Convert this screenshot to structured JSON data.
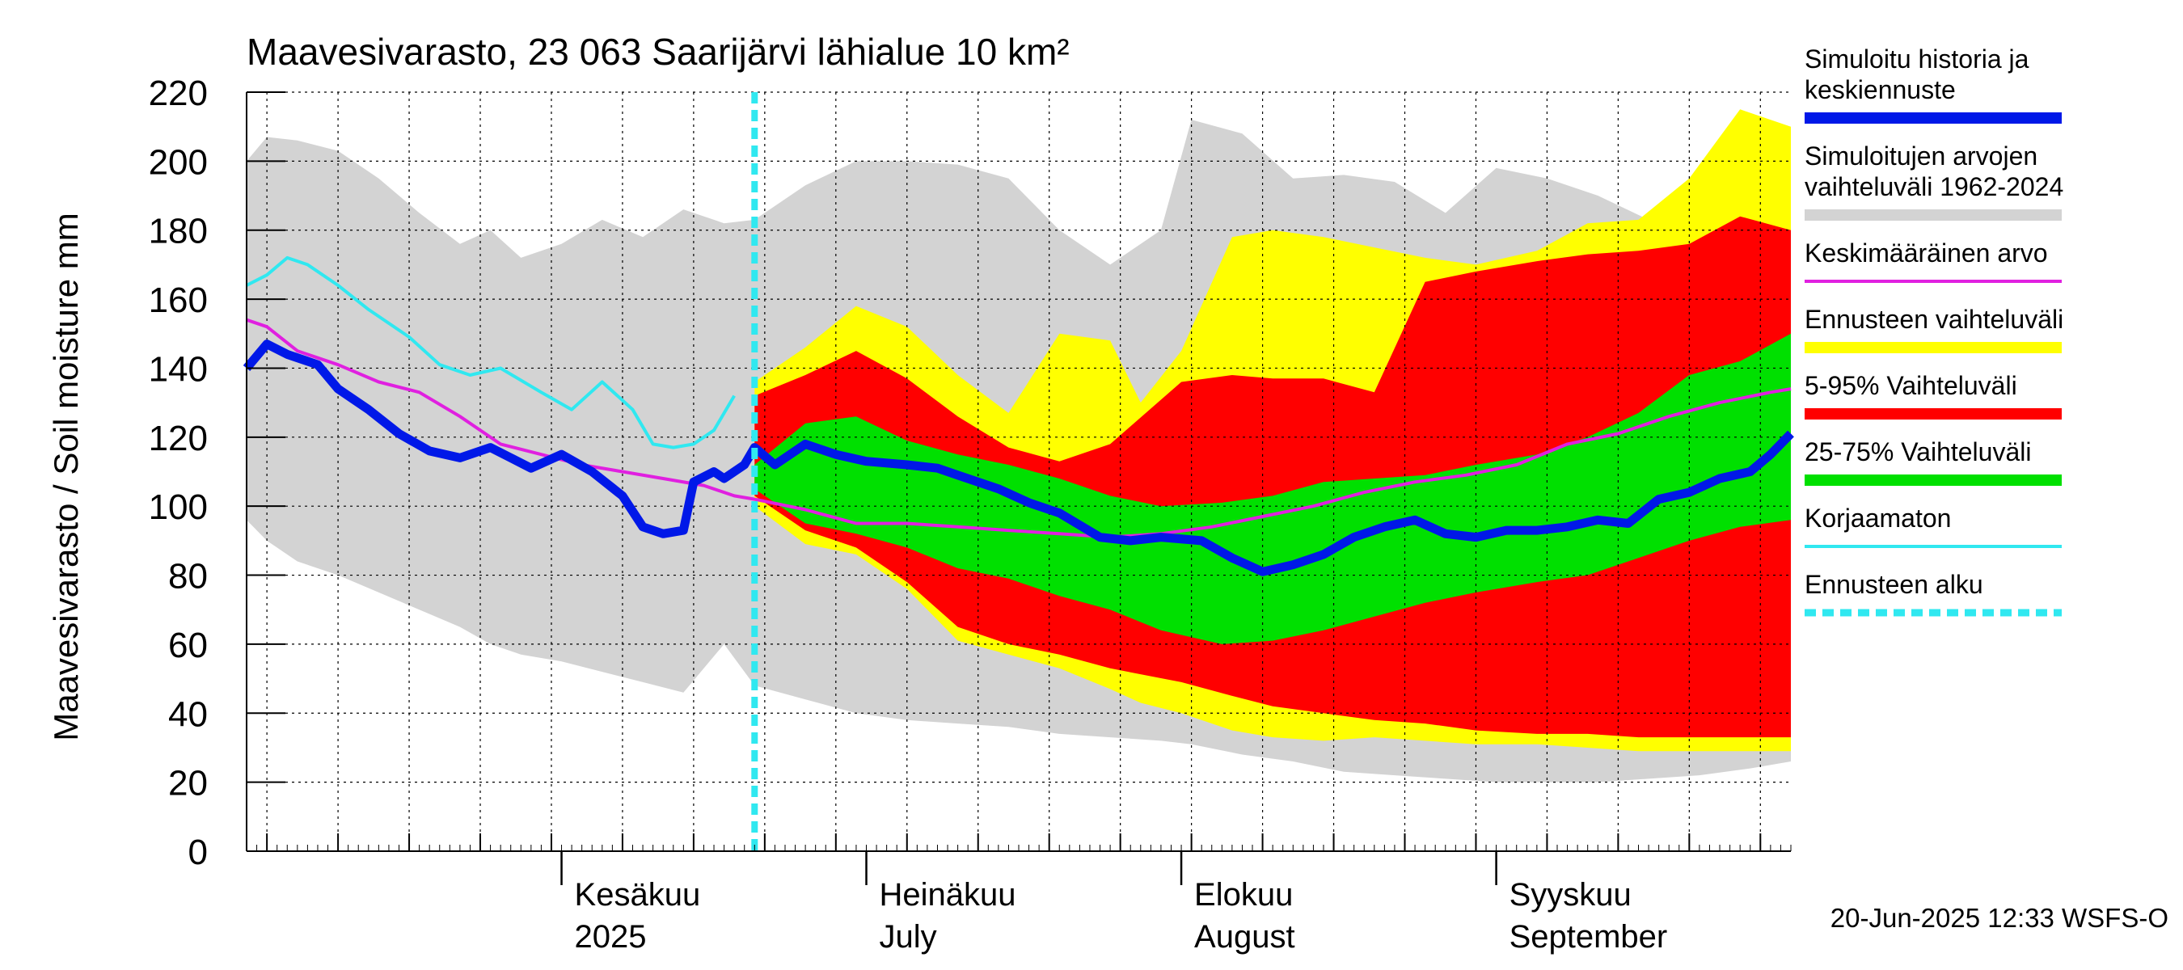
{
  "chart_data": {
    "type": "area",
    "title": "Maavesivarasto, 23 063 Saarijärvi lähialue 10 km²",
    "ylabel": "Maavesivarasto / Soil moisture   mm",
    "ylim": [
      0,
      220
    ],
    "yticks": [
      "0",
      "20",
      "40",
      "60",
      "80",
      "100",
      "120",
      "140",
      "160",
      "180",
      "200",
      "220"
    ],
    "xlim": [
      "2025-05-01",
      "2025-09-30"
    ],
    "month_labels": [
      {
        "date": "2025-06-01",
        "line1": "Kesäkuu",
        "line2": "2025"
      },
      {
        "date": "2025-07-01",
        "line1": "Heinäkuu",
        "line2": "July"
      },
      {
        "date": "2025-08-01",
        "line1": "Elokuu",
        "line2": "August"
      },
      {
        "date": "2025-09-01",
        "line1": "Syyskuu",
        "line2": "September"
      }
    ],
    "grid": true,
    "forecast_start": "2025-06-20",
    "legend_position": "right",
    "legend": [
      {
        "label": "Simuloitu historia ja keskiennuste",
        "color": "#0018e8",
        "style": "thick"
      },
      {
        "label": "Simuloitujen arvojen vaihteluväli 1962-2024",
        "color": "#d3d3d3",
        "style": "thick"
      },
      {
        "label": "Keskimääräinen arvo",
        "color": "#e020e0",
        "style": "thin"
      },
      {
        "label": "Ennusteen vaihteluväli",
        "color": "#ffff00",
        "style": "thick"
      },
      {
        "label": "5-95% Vaihteluväli",
        "color": "#ff0000",
        "style": "thick"
      },
      {
        "label": "25-75% Vaihteluväli",
        "color": "#00e000",
        "style": "thick"
      },
      {
        "label": "Korjaamaton",
        "color": "#30e8f0",
        "style": "thin"
      },
      {
        "label": "Ennusteen alku",
        "color": "#30e8f0",
        "style": "dashed"
      }
    ],
    "footer": "20-Jun-2025 12:33 WSFS-O",
    "series": [
      {
        "name": "Simuloitujen arvojen vaihteluväli 1962-2024",
        "kind": "band",
        "color": "#d3d3d3",
        "x": [
          "2025-05-01",
          "2025-05-03",
          "2025-05-06",
          "2025-05-10",
          "2025-05-14",
          "2025-05-18",
          "2025-05-22",
          "2025-05-25",
          "2025-05-28",
          "2025-06-01",
          "2025-06-05",
          "2025-06-09",
          "2025-06-13",
          "2025-06-17",
          "2025-06-20",
          "2025-06-25",
          "2025-06-30",
          "2025-07-05",
          "2025-07-10",
          "2025-07-15",
          "2025-07-20",
          "2025-07-25",
          "2025-07-30",
          "2025-08-02",
          "2025-08-07",
          "2025-08-12",
          "2025-08-17",
          "2025-08-22",
          "2025-08-27",
          "2025-09-01",
          "2025-09-06",
          "2025-09-11",
          "2025-09-16",
          "2025-09-21",
          "2025-09-26",
          "2025-09-30"
        ],
        "high": [
          200,
          207,
          206,
          203,
          195,
          185,
          176,
          180,
          172,
          176,
          183,
          178,
          186,
          182,
          183,
          193,
          200,
          200,
          199,
          195,
          180,
          170,
          180,
          212,
          208,
          195,
          196,
          194,
          185,
          198,
          195,
          190,
          183,
          178,
          180,
          184
        ],
        "low": [
          96,
          90,
          84,
          80,
          75,
          70,
          65,
          60,
          57,
          55,
          52,
          49,
          46,
          60,
          48,
          44,
          40,
          38,
          37,
          36,
          34,
          33,
          32,
          31,
          28,
          26,
          23,
          22,
          21,
          20,
          20,
          20,
          21,
          22,
          24,
          26
        ]
      },
      {
        "name": "Ennusteen vaihteluväli",
        "kind": "band",
        "color": "#ffff00",
        "x": [
          "2025-06-20",
          "2025-06-25",
          "2025-06-30",
          "2025-07-05",
          "2025-07-10",
          "2025-07-15",
          "2025-07-20",
          "2025-07-25",
          "2025-07-28",
          "2025-08-01",
          "2025-08-06",
          "2025-08-10",
          "2025-08-15",
          "2025-08-20",
          "2025-08-25",
          "2025-08-30",
          "2025-09-05",
          "2025-09-10",
          "2025-09-15",
          "2025-09-20",
          "2025-09-25",
          "2025-09-30"
        ],
        "high": [
          136,
          146,
          158,
          152,
          138,
          127,
          150,
          148,
          130,
          145,
          178,
          180,
          178,
          175,
          172,
          170,
          174,
          182,
          183,
          195,
          215,
          210
        ],
        "low": [
          100,
          89,
          86,
          76,
          61,
          57,
          53,
          47,
          43,
          40,
          35,
          33,
          32,
          33,
          32,
          31,
          31,
          30,
          29,
          29,
          29,
          29
        ]
      },
      {
        "name": "5-95% Vaihteluväli",
        "kind": "band",
        "color": "#ff0000",
        "x": [
          "2025-06-20",
          "2025-06-25",
          "2025-06-30",
          "2025-07-05",
          "2025-07-10",
          "2025-07-15",
          "2025-07-20",
          "2025-07-25",
          "2025-08-01",
          "2025-08-06",
          "2025-08-10",
          "2025-08-15",
          "2025-08-20",
          "2025-08-25",
          "2025-08-30",
          "2025-09-05",
          "2025-09-10",
          "2025-09-15",
          "2025-09-20",
          "2025-09-25",
          "2025-09-30"
        ],
        "high": [
          132,
          138,
          145,
          137,
          126,
          117,
          113,
          118,
          136,
          138,
          137,
          137,
          133,
          165,
          168,
          171,
          173,
          174,
          176,
          184,
          180
        ],
        "low": [
          103,
          93,
          88,
          78,
          65,
          60,
          57,
          53,
          49,
          45,
          42,
          40,
          38,
          37,
          35,
          34,
          34,
          33,
          33,
          33,
          33
        ]
      },
      {
        "name": "25-75% Vaihteluväli",
        "kind": "band",
        "color": "#00e000",
        "x": [
          "2025-06-20",
          "2025-06-25",
          "2025-06-30",
          "2025-07-05",
          "2025-07-10",
          "2025-07-15",
          "2025-07-20",
          "2025-07-25",
          "2025-07-30",
          "2025-08-05",
          "2025-08-10",
          "2025-08-15",
          "2025-08-20",
          "2025-08-25",
          "2025-08-30",
          "2025-09-05",
          "2025-09-10",
          "2025-09-15",
          "2025-09-20",
          "2025-09-25",
          "2025-09-30"
        ],
        "high": [
          112,
          124,
          126,
          119,
          115,
          112,
          108,
          103,
          100,
          101,
          103,
          107,
          108,
          109,
          112,
          115,
          120,
          127,
          138,
          142,
          150
        ],
        "low": [
          105,
          95,
          92,
          88,
          82,
          79,
          74,
          70,
          64,
          60,
          61,
          64,
          68,
          72,
          75,
          78,
          80,
          85,
          90,
          94,
          96
        ]
      },
      {
        "name": "Keskimääräinen arvo",
        "kind": "line",
        "color": "#e020e0",
        "x": [
          "2025-05-01",
          "2025-05-03",
          "2025-05-06",
          "2025-05-10",
          "2025-05-14",
          "2025-05-18",
          "2025-05-22",
          "2025-05-26",
          "2025-05-30",
          "2025-06-03",
          "2025-06-07",
          "2025-06-11",
          "2025-06-15",
          "2025-06-18",
          "2025-06-20",
          "2025-06-25",
          "2025-06-30",
          "2025-07-05",
          "2025-07-10",
          "2025-07-15",
          "2025-07-20",
          "2025-07-25",
          "2025-07-30",
          "2025-08-04",
          "2025-08-09",
          "2025-08-14",
          "2025-08-19",
          "2025-08-24",
          "2025-08-29",
          "2025-09-03",
          "2025-09-08",
          "2025-09-13",
          "2025-09-18",
          "2025-09-23",
          "2025-09-28",
          "2025-09-30"
        ],
        "values": [
          154,
          152,
          145,
          141,
          136,
          133,
          126,
          118,
          115,
          112,
          110,
          108,
          106,
          103,
          102,
          99,
          95,
          95,
          94,
          93,
          92,
          91,
          92,
          94,
          97,
          100,
          104,
          107,
          109,
          112,
          118,
          121,
          126,
          130,
          133,
          134
        ]
      },
      {
        "name": "Korjaamaton",
        "kind": "line",
        "color": "#30e8f0",
        "x": [
          "2025-05-01",
          "2025-05-03",
          "2025-05-05",
          "2025-05-07",
          "2025-05-10",
          "2025-05-13",
          "2025-05-17",
          "2025-05-20",
          "2025-05-23",
          "2025-05-26",
          "2025-05-30",
          "2025-06-02",
          "2025-06-05",
          "2025-06-08",
          "2025-06-10",
          "2025-06-12",
          "2025-06-14",
          "2025-06-16",
          "2025-06-18"
        ],
        "values": [
          164,
          167,
          172,
          170,
          164,
          157,
          149,
          141,
          138,
          140,
          133,
          128,
          136,
          128,
          118,
          117,
          118,
          122,
          132
        ]
      },
      {
        "name": "Simuloitu historia ja keskiennuste",
        "kind": "line",
        "color": "#0018e8",
        "x": [
          "2025-05-01",
          "2025-05-03",
          "2025-05-05",
          "2025-05-08",
          "2025-05-10",
          "2025-05-13",
          "2025-05-16",
          "2025-05-19",
          "2025-05-22",
          "2025-05-25",
          "2025-05-27",
          "2025-05-29",
          "2025-06-01",
          "2025-06-04",
          "2025-06-07",
          "2025-06-09",
          "2025-06-11",
          "2025-06-13",
          "2025-06-14",
          "2025-06-16",
          "2025-06-17",
          "2025-06-19",
          "2025-06-20",
          "2025-06-22",
          "2025-06-25",
          "2025-06-28",
          "2025-07-01",
          "2025-07-05",
          "2025-07-08",
          "2025-07-10",
          "2025-07-14",
          "2025-07-17",
          "2025-07-20",
          "2025-07-24",
          "2025-07-27",
          "2025-07-30",
          "2025-08-03",
          "2025-08-06",
          "2025-08-09",
          "2025-08-12",
          "2025-08-15",
          "2025-08-18",
          "2025-08-21",
          "2025-08-24",
          "2025-08-27",
          "2025-08-30",
          "2025-09-02",
          "2025-09-05",
          "2025-09-08",
          "2025-09-11",
          "2025-09-14",
          "2025-09-17",
          "2025-09-20",
          "2025-09-23",
          "2025-09-26",
          "2025-09-28",
          "2025-09-30"
        ],
        "values": [
          140,
          147,
          144,
          141,
          134,
          128,
          121,
          116,
          114,
          117,
          114,
          111,
          115,
          110,
          103,
          94,
          92,
          93,
          107,
          110,
          108,
          112,
          117,
          112,
          118,
          115,
          113,
          112,
          111,
          109,
          105,
          101,
          98,
          91,
          90,
          91,
          90,
          85,
          81,
          83,
          86,
          91,
          94,
          96,
          92,
          91,
          93,
          93,
          94,
          96,
          95,
          102,
          104,
          108,
          110,
          115,
          121
        ]
      }
    ]
  }
}
